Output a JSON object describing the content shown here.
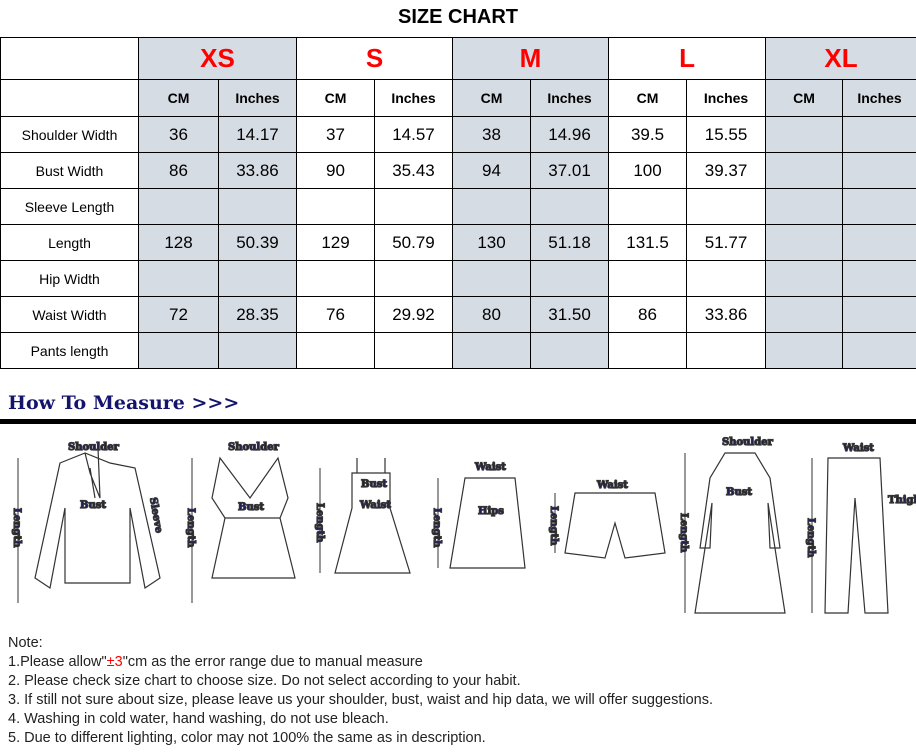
{
  "title": "SIZE CHART",
  "sizes": [
    "XS",
    "S",
    "M",
    "L",
    "XL"
  ],
  "units": [
    "CM",
    "Inches"
  ],
  "rows": [
    {
      "label": "Shoulder Width",
      "values": [
        "36",
        "14.17",
        "37",
        "14.57",
        "38",
        "14.96",
        "39.5",
        "15.55",
        "",
        ""
      ]
    },
    {
      "label": "Bust Width",
      "values": [
        "86",
        "33.86",
        "90",
        "35.43",
        "94",
        "37.01",
        "100",
        "39.37",
        "",
        ""
      ]
    },
    {
      "label": "Sleeve Length",
      "values": [
        "",
        "",
        "",
        "",
        "",
        "",
        "",
        "",
        "",
        ""
      ]
    },
    {
      "label": "Length",
      "values": [
        "128",
        "50.39",
        "129",
        "50.79",
        "130",
        "51.18",
        "131.5",
        "51.77",
        "",
        ""
      ]
    },
    {
      "label": "Hip Width",
      "values": [
        "",
        "",
        "",
        "",
        "",
        "",
        "",
        "",
        "",
        ""
      ]
    },
    {
      "label": "Waist Width",
      "values": [
        "72",
        "28.35",
        "76",
        "29.92",
        "80",
        "31.50",
        "86",
        "33.86",
        "",
        ""
      ]
    },
    {
      "label": "Pants length",
      "values": [
        "",
        "",
        "",
        "",
        "",
        "",
        "",
        "",
        "",
        ""
      ]
    }
  ],
  "how_to_measure": "How To Measure >>>",
  "measure_labels": {
    "shoulder": "Shoulder",
    "bust": "Bust",
    "sleeve": "Sleeve",
    "length": "Length",
    "waist": "Waist",
    "hips": "Hips",
    "thigh": "Thigh"
  },
  "notes": {
    "heading": "Note:",
    "n1_pre": "1.Please allow\"",
    "n1_red": "±3",
    "n1_post": "\"cm as the error range due to manual measure",
    "n2": "2. Please check size chart to choose size. Do not select according to your habit.",
    "n3": "3. If still not sure about size, please leave us your shoulder, bust, waist and hip data, we will offer suggestions.",
    "n4": "4. Washing in cold water, hand washing, do not use bleach.",
    "n5": "5. Due to different lighting, color may not 100% the same as in description."
  },
  "colors": {
    "size_label": "#ff0000",
    "shade": "#d6dce4",
    "heading": "#14146e"
  }
}
